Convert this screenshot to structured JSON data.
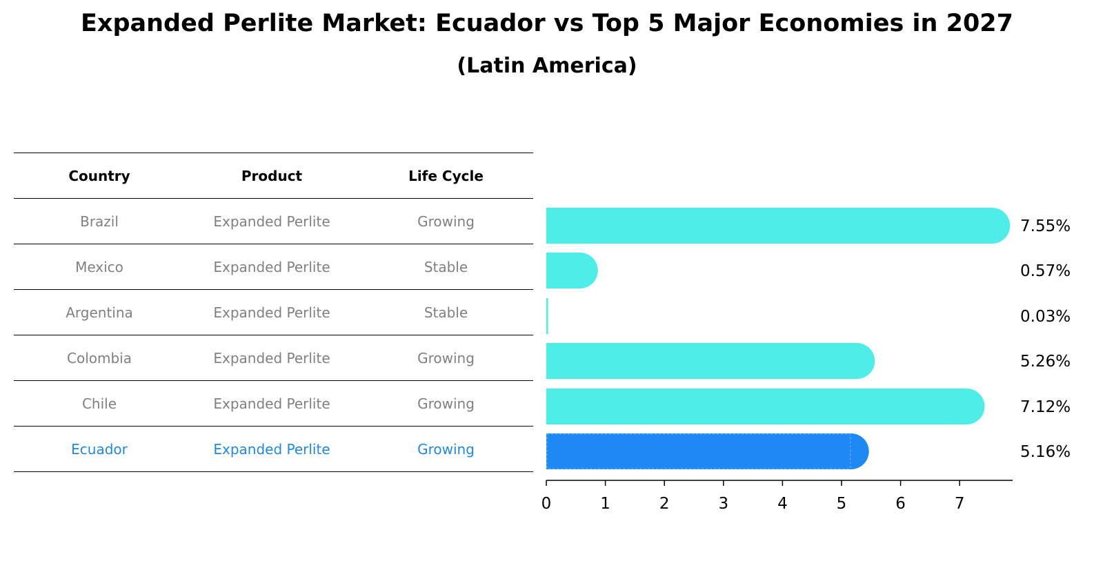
{
  "chart_data": {
    "type": "bar",
    "title": "Expanded Perlite Market: Ecuador vs Top 5 Major Economies in 2027",
    "subtitle": "(Latin America)",
    "table": {
      "headers": [
        "Country",
        "Product",
        "Life Cycle"
      ],
      "rows": [
        [
          "Brazil",
          "Expanded Perlite",
          "Growing"
        ],
        [
          "Mexico",
          "Expanded Perlite",
          "Stable"
        ],
        [
          "Argentina",
          "Expanded Perlite",
          "Stable"
        ],
        [
          "Colombia",
          "Expanded Perlite",
          "Growing"
        ],
        [
          "Chile",
          "Expanded Perlite",
          "Growing"
        ],
        [
          "Ecuador",
          "Expanded Perlite",
          "Growing"
        ]
      ],
      "highlight_row": 5
    },
    "categories": [
      "Brazil",
      "Mexico",
      "Argentina",
      "Colombia",
      "Chile",
      "Ecuador"
    ],
    "values": [
      7.55,
      0.57,
      0.03,
      5.26,
      7.12,
      5.16
    ],
    "value_labels": [
      "7.55%",
      "0.57%",
      "0.03%",
      "5.26%",
      "7.12%",
      "5.16%"
    ],
    "x_ticks": [
      "0",
      "1",
      "2",
      "3",
      "4",
      "5",
      "6",
      "7"
    ],
    "xlim": [
      0,
      7.92
    ],
    "colors": {
      "bar": "#4deee8",
      "highlight_bar": "#1e88f5",
      "highlight_text": "#1e88e5",
      "muted_text": "#808080"
    }
  }
}
